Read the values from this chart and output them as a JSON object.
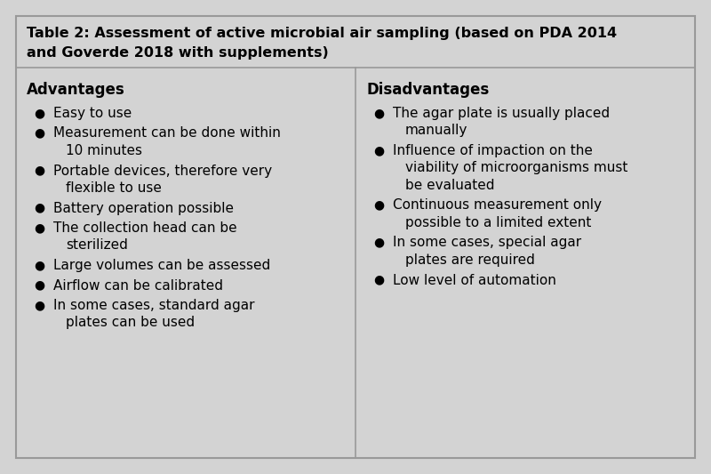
{
  "title_line1": "Table 2: Assessment of active microbial air sampling (based on PDA 2014",
  "title_line2": "and Goverde 2018 with supplements)",
  "bg_color": "#d3d3d3",
  "border_color": "#999999",
  "text_color": "#000000",
  "adv_header": "Advantages",
  "dis_header": "Disadvantages",
  "advantages": [
    [
      "Easy to use"
    ],
    [
      "Measurement can be done within",
      "10 minutes"
    ],
    [
      "Portable devices, therefore very",
      "flexible to use"
    ],
    [
      "Battery operation possible"
    ],
    [
      "The collection head can be",
      "sterilized"
    ],
    [
      "Large volumes can be assessed"
    ],
    [
      "Airflow can be calibrated"
    ],
    [
      "In some cases, standard agar",
      "plates can be used"
    ]
  ],
  "disadvantages": [
    [
      "The agar plate is usually placed",
      "manually"
    ],
    [
      "Influence of impaction on the",
      "viability of microorganisms must",
      "be evaluated"
    ],
    [
      "Continuous measurement only",
      "possible to a limited extent"
    ],
    [
      "In some cases, special agar",
      "plates are required"
    ],
    [
      "Low level of automation"
    ]
  ],
  "figsize": [
    8.0,
    5.33
  ],
  "dpi": 100,
  "title_fontsize": 11.5,
  "header_fontsize": 12.0,
  "body_fontsize": 11.0
}
